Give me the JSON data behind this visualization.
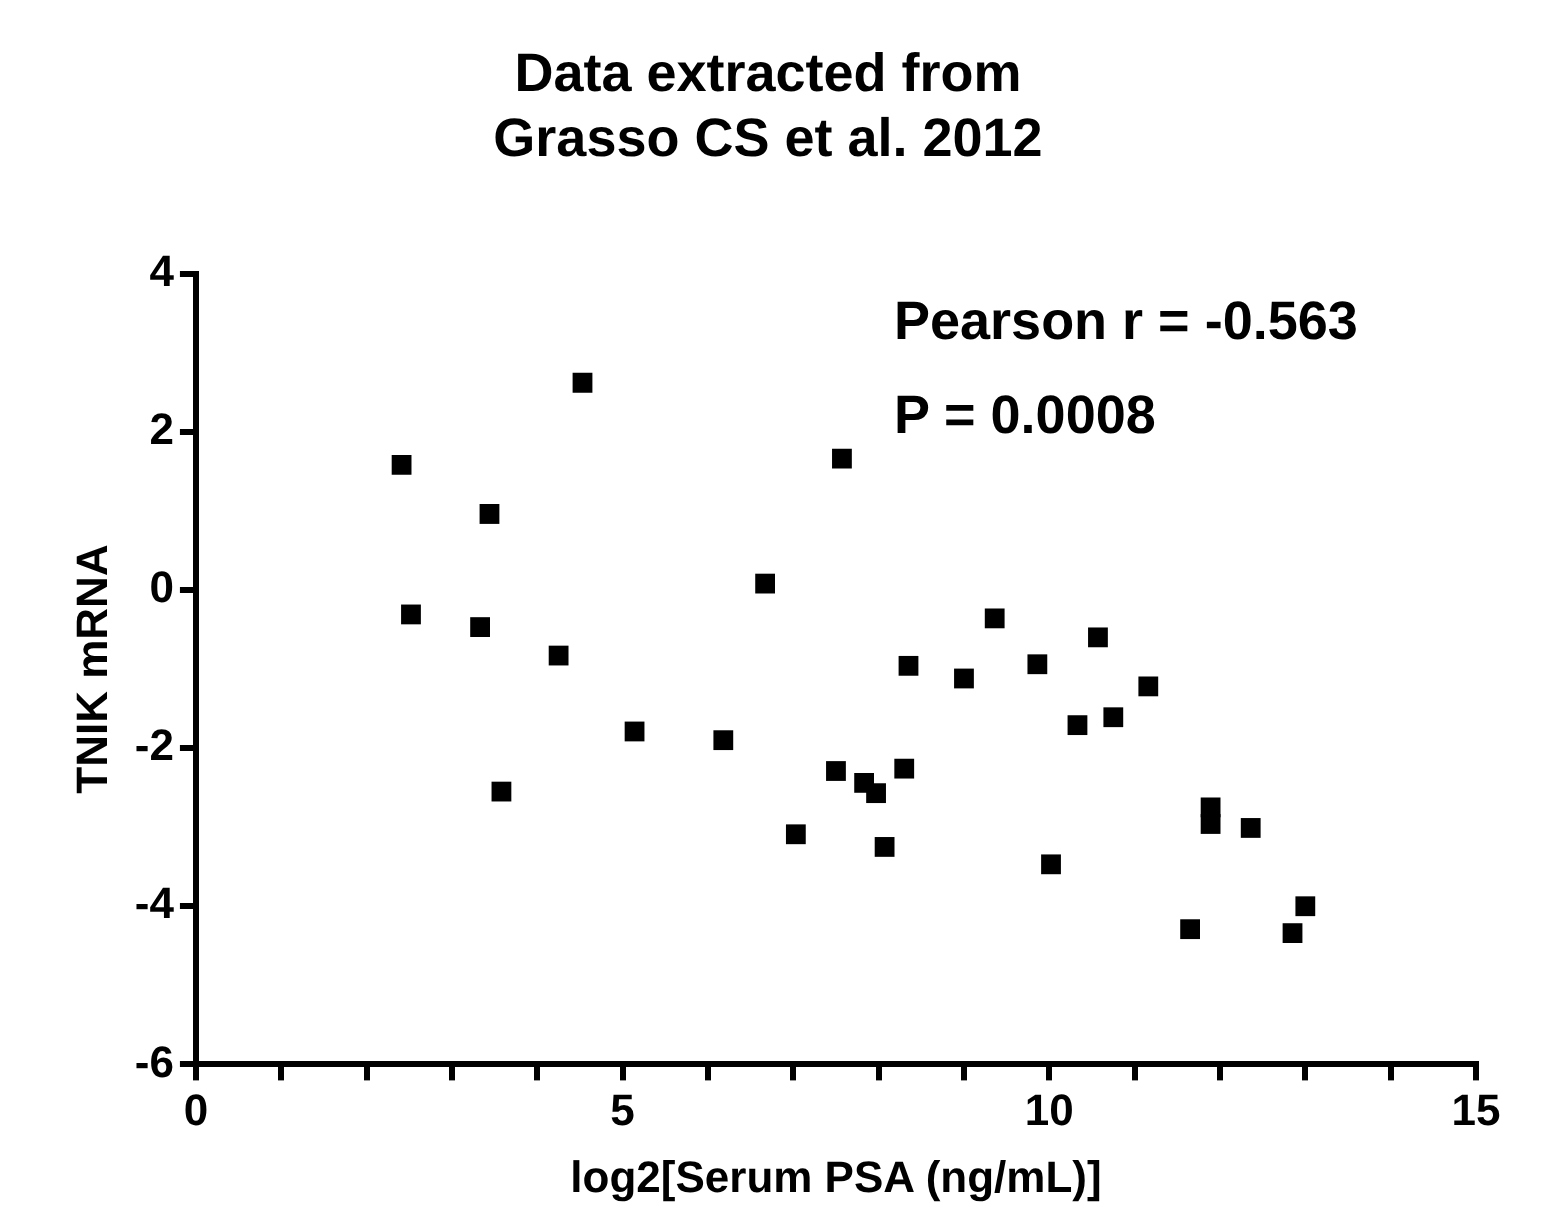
{
  "chart_data": {
    "type": "scatter",
    "title": "Data extracted from\nGrasso CS et al. 2012",
    "xlabel": "log2[Serum PSA (ng/mL)]",
    "ylabel": "TNIK mRNA",
    "annotations": [
      "Pearson r = -0.563",
      "P = 0.0008"
    ],
    "x": [
      2.41,
      2.52,
      3.44,
      3.33,
      3.58,
      4.25,
      4.53,
      5.14,
      6.18,
      6.67,
      7.03,
      7.5,
      7.57,
      7.83,
      7.97,
      8.07,
      8.3,
      8.35,
      9.0,
      9.36,
      9.86,
      10.57,
      10.33,
      10.75,
      11.16,
      10.02,
      11.65,
      11.89,
      11.89,
      12.36,
      12.85,
      13.0
    ],
    "series": [
      {
        "color": "#000000",
        "values": [
          1.58,
          -0.31,
          0.96,
          -0.47,
          -2.55,
          -0.83,
          2.62,
          -1.79,
          -1.9,
          0.08,
          -3.09,
          -2.29,
          1.66,
          -2.44,
          -2.57,
          -3.25,
          -2.26,
          -0.96,
          -1.12,
          -0.36,
          -0.94,
          -0.6,
          -1.71,
          -1.61,
          -1.22,
          -3.47,
          -4.29,
          -2.75,
          -2.96,
          -3.01,
          -4.34,
          -4.0
        ]
      }
    ],
    "xlim": [
      0,
      15
    ],
    "xticks": [
      0,
      {
        "value": 1,
        "label": null
      },
      {
        "value": 2,
        "label": null
      },
      {
        "value": 3,
        "label": null
      },
      {
        "value": 4,
        "label": null
      },
      5,
      {
        "value": 6,
        "label": null
      },
      {
        "value": 7,
        "label": null
      },
      {
        "value": 8,
        "label": null
      },
      {
        "value": 9,
        "label": null
      },
      10,
      {
        "value": 11,
        "label": null
      },
      {
        "value": 12,
        "label": null
      },
      {
        "value": 13,
        "label": null
      },
      {
        "value": 14,
        "label": null
      },
      15
    ],
    "ylim": [
      -6,
      4
    ],
    "yticks": [
      -6,
      -4,
      -2,
      0,
      2,
      4
    ],
    "grid": false,
    "legend": false,
    "marker": "square"
  }
}
